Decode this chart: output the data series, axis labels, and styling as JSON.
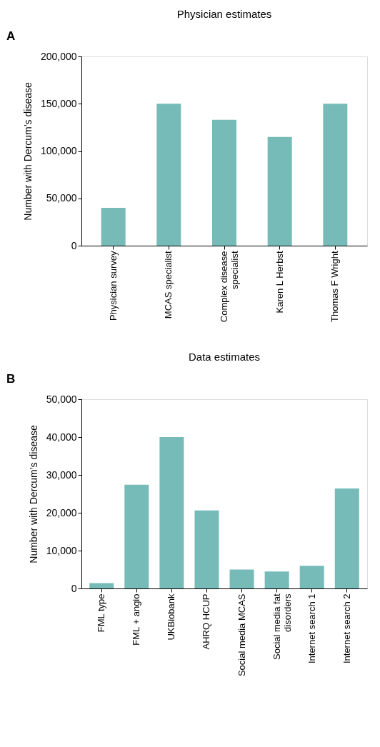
{
  "chart_data": [
    {
      "type": "bar",
      "title": "Physician estimates",
      "ylabel": "Number with Dercum’s disease",
      "annotations": [
        "A"
      ],
      "categories": [
        "Physician survey",
        "MCAS specialist",
        "Complex disease\nspecialist",
        "Karen L Herbst",
        "Thomas F Wright"
      ],
      "values": [
        40000,
        150000,
        133000,
        115000,
        150000
      ],
      "color": "#76bbb7",
      "ylim": [
        0,
        200000
      ],
      "yticks": [
        {
          "value": 0,
          "label": "0"
        },
        {
          "value": 50000,
          "label": "50,000"
        },
        {
          "value": 100000,
          "label": "100,000"
        },
        {
          "value": 150000,
          "label": "150,000"
        },
        {
          "value": 200000,
          "label": "200,000"
        }
      ],
      "grid": false
    },
    {
      "type": "bar",
      "title": "Data estimates",
      "ylabel": "Number with Dercum’s disease",
      "annotations": [
        "B"
      ],
      "categories": [
        "FML type",
        "FML + angio",
        "UKBiobank",
        "AHRQ HCUP",
        "Social media MCAS",
        "Social media fat\ndisorders",
        "Internet search 1",
        "Internet search 2"
      ],
      "values": [
        1400,
        27400,
        40000,
        20600,
        5000,
        4500,
        6000,
        26400
      ],
      "color": "#76bbb7",
      "ylim": [
        0,
        50000
      ],
      "yticks": [
        {
          "value": 0,
          "label": "0"
        },
        {
          "value": 10000,
          "label": "10,000"
        },
        {
          "value": 20000,
          "label": "20,000"
        },
        {
          "value": 30000,
          "label": "30,000"
        },
        {
          "value": 40000,
          "label": "40,000"
        },
        {
          "value": 50000,
          "label": "50,000"
        }
      ],
      "grid": false
    }
  ]
}
